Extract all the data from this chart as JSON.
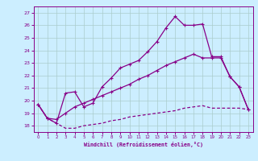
{
  "xlabel": "Windchill (Refroidissement éolien,°C)",
  "bg_color": "#cceeff",
  "grid_color": "#aacccc",
  "line_color": "#880088",
  "xlim": [
    -0.5,
    23.5
  ],
  "ylim": [
    17.5,
    27.5
  ],
  "xticks": [
    0,
    1,
    2,
    3,
    4,
    5,
    6,
    7,
    8,
    9,
    10,
    11,
    12,
    13,
    14,
    15,
    16,
    17,
    18,
    19,
    20,
    21,
    22,
    23
  ],
  "yticks": [
    18,
    19,
    20,
    21,
    22,
    23,
    24,
    25,
    26,
    27
  ],
  "line1_x": [
    0,
    1,
    2,
    3,
    4,
    5,
    6,
    7,
    8,
    9,
    10,
    11,
    12,
    13,
    14,
    15,
    16,
    17,
    18,
    19,
    20,
    21,
    22,
    23
  ],
  "line1_y": [
    19.7,
    18.6,
    18.2,
    20.6,
    20.7,
    19.5,
    19.8,
    21.1,
    21.8,
    22.6,
    22.9,
    23.2,
    23.9,
    24.7,
    25.8,
    26.7,
    26.0,
    26.0,
    26.1,
    23.5,
    23.5,
    21.9,
    21.1,
    19.3
  ],
  "line2_x": [
    0,
    1,
    2,
    3,
    4,
    5,
    6,
    7,
    8,
    9,
    10,
    11,
    12,
    13,
    14,
    15,
    16,
    17,
    18,
    19,
    20,
    21,
    22,
    23
  ],
  "line2_y": [
    19.7,
    18.6,
    18.5,
    19.0,
    19.5,
    19.8,
    20.1,
    20.4,
    20.7,
    21.0,
    21.3,
    21.7,
    22.0,
    22.4,
    22.8,
    23.1,
    23.4,
    23.7,
    23.4,
    23.4,
    23.4,
    21.9,
    21.1,
    19.3
  ],
  "line3_x": [
    0,
    1,
    2,
    3,
    4,
    5,
    6,
    7,
    8,
    9,
    10,
    11,
    12,
    13,
    14,
    15,
    16,
    17,
    18,
    19,
    20,
    21,
    22,
    23
  ],
  "line3_y": [
    19.7,
    18.6,
    18.2,
    17.8,
    17.8,
    18.0,
    18.1,
    18.2,
    18.4,
    18.5,
    18.7,
    18.8,
    18.9,
    19.0,
    19.1,
    19.2,
    19.4,
    19.5,
    19.6,
    19.4,
    19.4,
    19.4,
    19.4,
    19.3
  ]
}
